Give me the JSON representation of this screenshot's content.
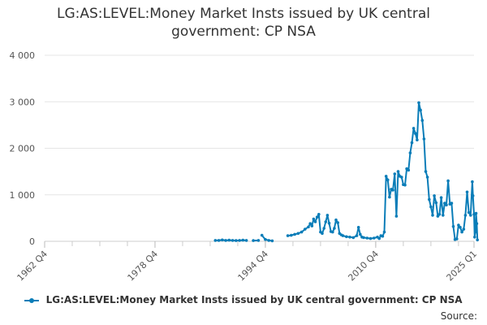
{
  "header": {
    "title_line1": "LG:AS:LEVEL:Money Market Insts issued by UK central",
    "title_line2": "government: CP NSA"
  },
  "footer": {
    "source_label": "Source:"
  },
  "chart_data": {
    "type": "line",
    "title": "LG:AS:LEVEL:Money Market Insts issued by UK central government: CP NSA",
    "xlabel": "",
    "ylabel": "",
    "x_ticks": [
      "1962 Q4",
      "1978 Q4",
      "1994 Q4",
      "2010 Q4",
      "2025 Q1"
    ],
    "y_ticks": [
      "0",
      "1 000",
      "2 000",
      "3 000",
      "4 000"
    ],
    "xlim": [
      1962.75,
      2025.0
    ],
    "ylim": [
      0,
      4000
    ],
    "grid": "horizontal",
    "legend_position": "bottom",
    "color": "#0a7db8",
    "series": [
      {
        "name": "LG:AS:LEVEL:Money Market Insts issued by UK central government: CP NSA",
        "segments": [
          [
            [
              1987.5,
              20
            ],
            [
              1988.0,
              20
            ],
            [
              1988.5,
              30
            ],
            [
              1989.0,
              20
            ],
            [
              1989.5,
              25
            ],
            [
              1990.0,
              20
            ],
            [
              1990.5,
              15
            ],
            [
              1991.0,
              20
            ],
            [
              1991.5,
              25
            ],
            [
              1992.0,
              20
            ]
          ],
          [
            [
              1993.0,
              15
            ],
            [
              1993.75,
              20
            ]
          ],
          [
            [
              1994.25,
              130
            ],
            [
              1994.75,
              40
            ],
            [
              1995.25,
              20
            ],
            [
              1995.75,
              10
            ]
          ],
          [
            [
              1998.0,
              120
            ],
            [
              1998.5,
              130
            ],
            [
              1999.0,
              150
            ],
            [
              1999.5,
              170
            ],
            [
              2000.0,
              200
            ],
            [
              2000.5,
              260
            ],
            [
              2001.0,
              310
            ],
            [
              2001.25,
              380
            ],
            [
              2001.5,
              330
            ],
            [
              2001.75,
              480
            ],
            [
              2002.0,
              420
            ],
            [
              2002.25,
              520
            ],
            [
              2002.5,
              580
            ],
            [
              2002.75,
              200
            ],
            [
              2003.0,
              170
            ],
            [
              2003.25,
              280
            ],
            [
              2003.5,
              420
            ],
            [
              2003.75,
              560
            ],
            [
              2004.0,
              390
            ],
            [
              2004.25,
              210
            ],
            [
              2004.5,
              200
            ],
            [
              2004.75,
              280
            ],
            [
              2005.0,
              460
            ],
            [
              2005.25,
              400
            ],
            [
              2005.5,
              170
            ],
            [
              2005.75,
              140
            ],
            [
              2006.0,
              120
            ],
            [
              2006.5,
              100
            ],
            [
              2007.0,
              90
            ],
            [
              2007.5,
              80
            ],
            [
              2008.0,
              120
            ],
            [
              2008.25,
              300
            ],
            [
              2008.5,
              150
            ],
            [
              2008.75,
              90
            ],
            [
              2009.0,
              80
            ],
            [
              2009.5,
              70
            ],
            [
              2010.0,
              60
            ],
            [
              2010.5,
              70
            ],
            [
              2011.0,
              90
            ],
            [
              2011.25,
              60
            ],
            [
              2011.5,
              120
            ],
            [
              2011.75,
              110
            ],
            [
              2012.0,
              200
            ],
            [
              2012.25,
              1400
            ],
            [
              2012.5,
              1320
            ],
            [
              2012.75,
              950
            ],
            [
              2013.0,
              1120
            ],
            [
              2013.25,
              1100
            ],
            [
              2013.5,
              1450
            ],
            [
              2013.75,
              540
            ],
            [
              2014.0,
              1500
            ],
            [
              2014.25,
              1400
            ],
            [
              2014.5,
              1380
            ],
            [
              2014.75,
              1220
            ],
            [
              2015.0,
              1210
            ],
            [
              2015.25,
              1560
            ],
            [
              2015.5,
              1530
            ],
            [
              2015.75,
              1900
            ],
            [
              2016.0,
              2120
            ],
            [
              2016.25,
              2430
            ],
            [
              2016.5,
              2320
            ],
            [
              2016.75,
              2180
            ],
            [
              2017.0,
              2980
            ],
            [
              2017.25,
              2820
            ],
            [
              2017.5,
              2600
            ],
            [
              2017.75,
              2200
            ],
            [
              2018.0,
              1500
            ],
            [
              2018.25,
              1380
            ],
            [
              2018.5,
              900
            ],
            [
              2018.75,
              740
            ],
            [
              2019.0,
              560
            ],
            [
              2019.25,
              980
            ],
            [
              2019.5,
              830
            ],
            [
              2019.75,
              540
            ],
            [
              2020.0,
              580
            ],
            [
              2020.25,
              940
            ],
            [
              2020.5,
              560
            ],
            [
              2020.75,
              820
            ],
            [
              2021.0,
              780
            ],
            [
              2021.25,
              1300
            ],
            [
              2021.5,
              800
            ],
            [
              2021.75,
              820
            ],
            [
              2022.0,
              320
            ],
            [
              2022.25,
              40
            ],
            [
              2022.5,
              50
            ],
            [
              2022.75,
              350
            ],
            [
              2023.0,
              300
            ],
            [
              2023.25,
              200
            ],
            [
              2023.5,
              260
            ],
            [
              2023.75,
              560
            ],
            [
              2024.0,
              1060
            ],
            [
              2024.25,
              620
            ],
            [
              2024.5,
              560
            ],
            [
              2024.75,
              1280
            ],
            [
              2024.85,
              980
            ],
            [
              2025.0,
              580
            ],
            [
              2025.1,
              90
            ],
            [
              2025.2,
              200
            ],
            [
              2025.3,
              600
            ],
            [
              2025.4,
              380
            ],
            [
              2025.5,
              30
            ]
          ]
        ]
      }
    ]
  }
}
